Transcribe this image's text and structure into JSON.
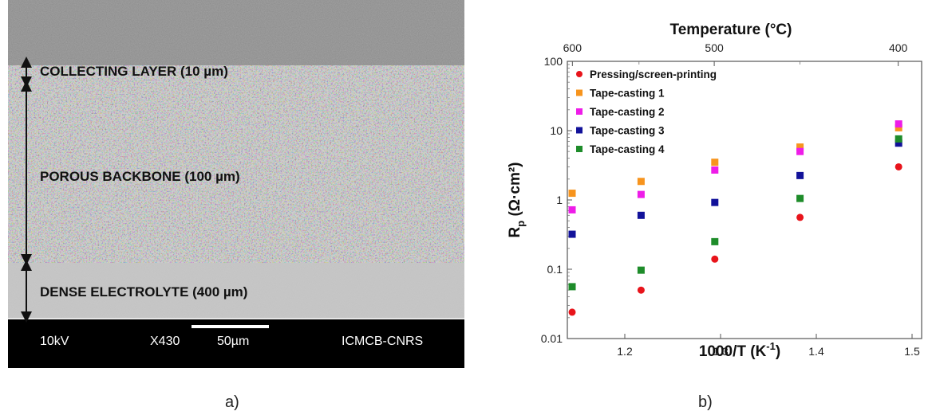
{
  "panel_a": {
    "label": "a)",
    "layers": [
      "COLLECTING LAYER (10 µm)",
      "POROUS BACKBONE (100 µm)",
      "DENSE ELECTROLYTE (400 µm)"
    ],
    "footer": {
      "voltage": "10kV",
      "magnification": "X430",
      "scale": "50µm",
      "lab": "ICMCB-CNRS"
    }
  },
  "panel_b": {
    "label": "b)"
  },
  "chart_data": {
    "type": "scatter",
    "title": "",
    "xlabel": "1000/T (K",
    "xlabel_sup": "-1",
    "xlabel_end": ")",
    "ylabel": "R",
    "ylabel_sub": "p",
    "ylabel_unit": "(Ω·cm²)",
    "top_axis_label": "Temperature (°C)",
    "xlim": [
      1.14,
      1.51
    ],
    "ylim": [
      0.01,
      100
    ],
    "yscale": "log",
    "x_ticks": [
      "1.2",
      "1.3",
      "1.4",
      "1.5"
    ],
    "x_tick_values": [
      1.2,
      1.3,
      1.4,
      1.5
    ],
    "y_ticks": [
      "0.01",
      "0.1",
      "1",
      "10",
      "100"
    ],
    "y_tick_values": [
      0.01,
      0.1,
      1,
      10,
      100
    ],
    "top_ticks": [
      "600",
      "500",
      "400"
    ],
    "top_tick_values": [
      600,
      500,
      400
    ],
    "legend_position": "top-left",
    "grid": false,
    "x": [
      1.145,
      1.217,
      1.294,
      1.383,
      1.486
    ],
    "series": [
      {
        "name": "Pressing/screen-printing",
        "marker": "circle",
        "color": "#e8141b",
        "values": [
          0.024,
          0.05,
          0.14,
          0.56,
          3.0
        ]
      },
      {
        "name": "Tape-casting 1",
        "marker": "square",
        "color": "#f7941d",
        "values": [
          1.25,
          1.85,
          3.5,
          5.8,
          11.0
        ]
      },
      {
        "name": "Tape-casting 2",
        "marker": "square",
        "color": "#ee1ce8",
        "values": [
          0.72,
          1.2,
          2.7,
          5.0,
          12.5
        ]
      },
      {
        "name": "Tape-casting 3",
        "marker": "square",
        "color": "#12129a",
        "values": [
          0.32,
          0.6,
          0.92,
          2.25,
          6.6
        ]
      },
      {
        "name": "Tape-casting 4",
        "marker": "square",
        "color": "#1e8c2a",
        "values": [
          0.056,
          0.097,
          0.25,
          1.05,
          7.6
        ]
      }
    ]
  }
}
